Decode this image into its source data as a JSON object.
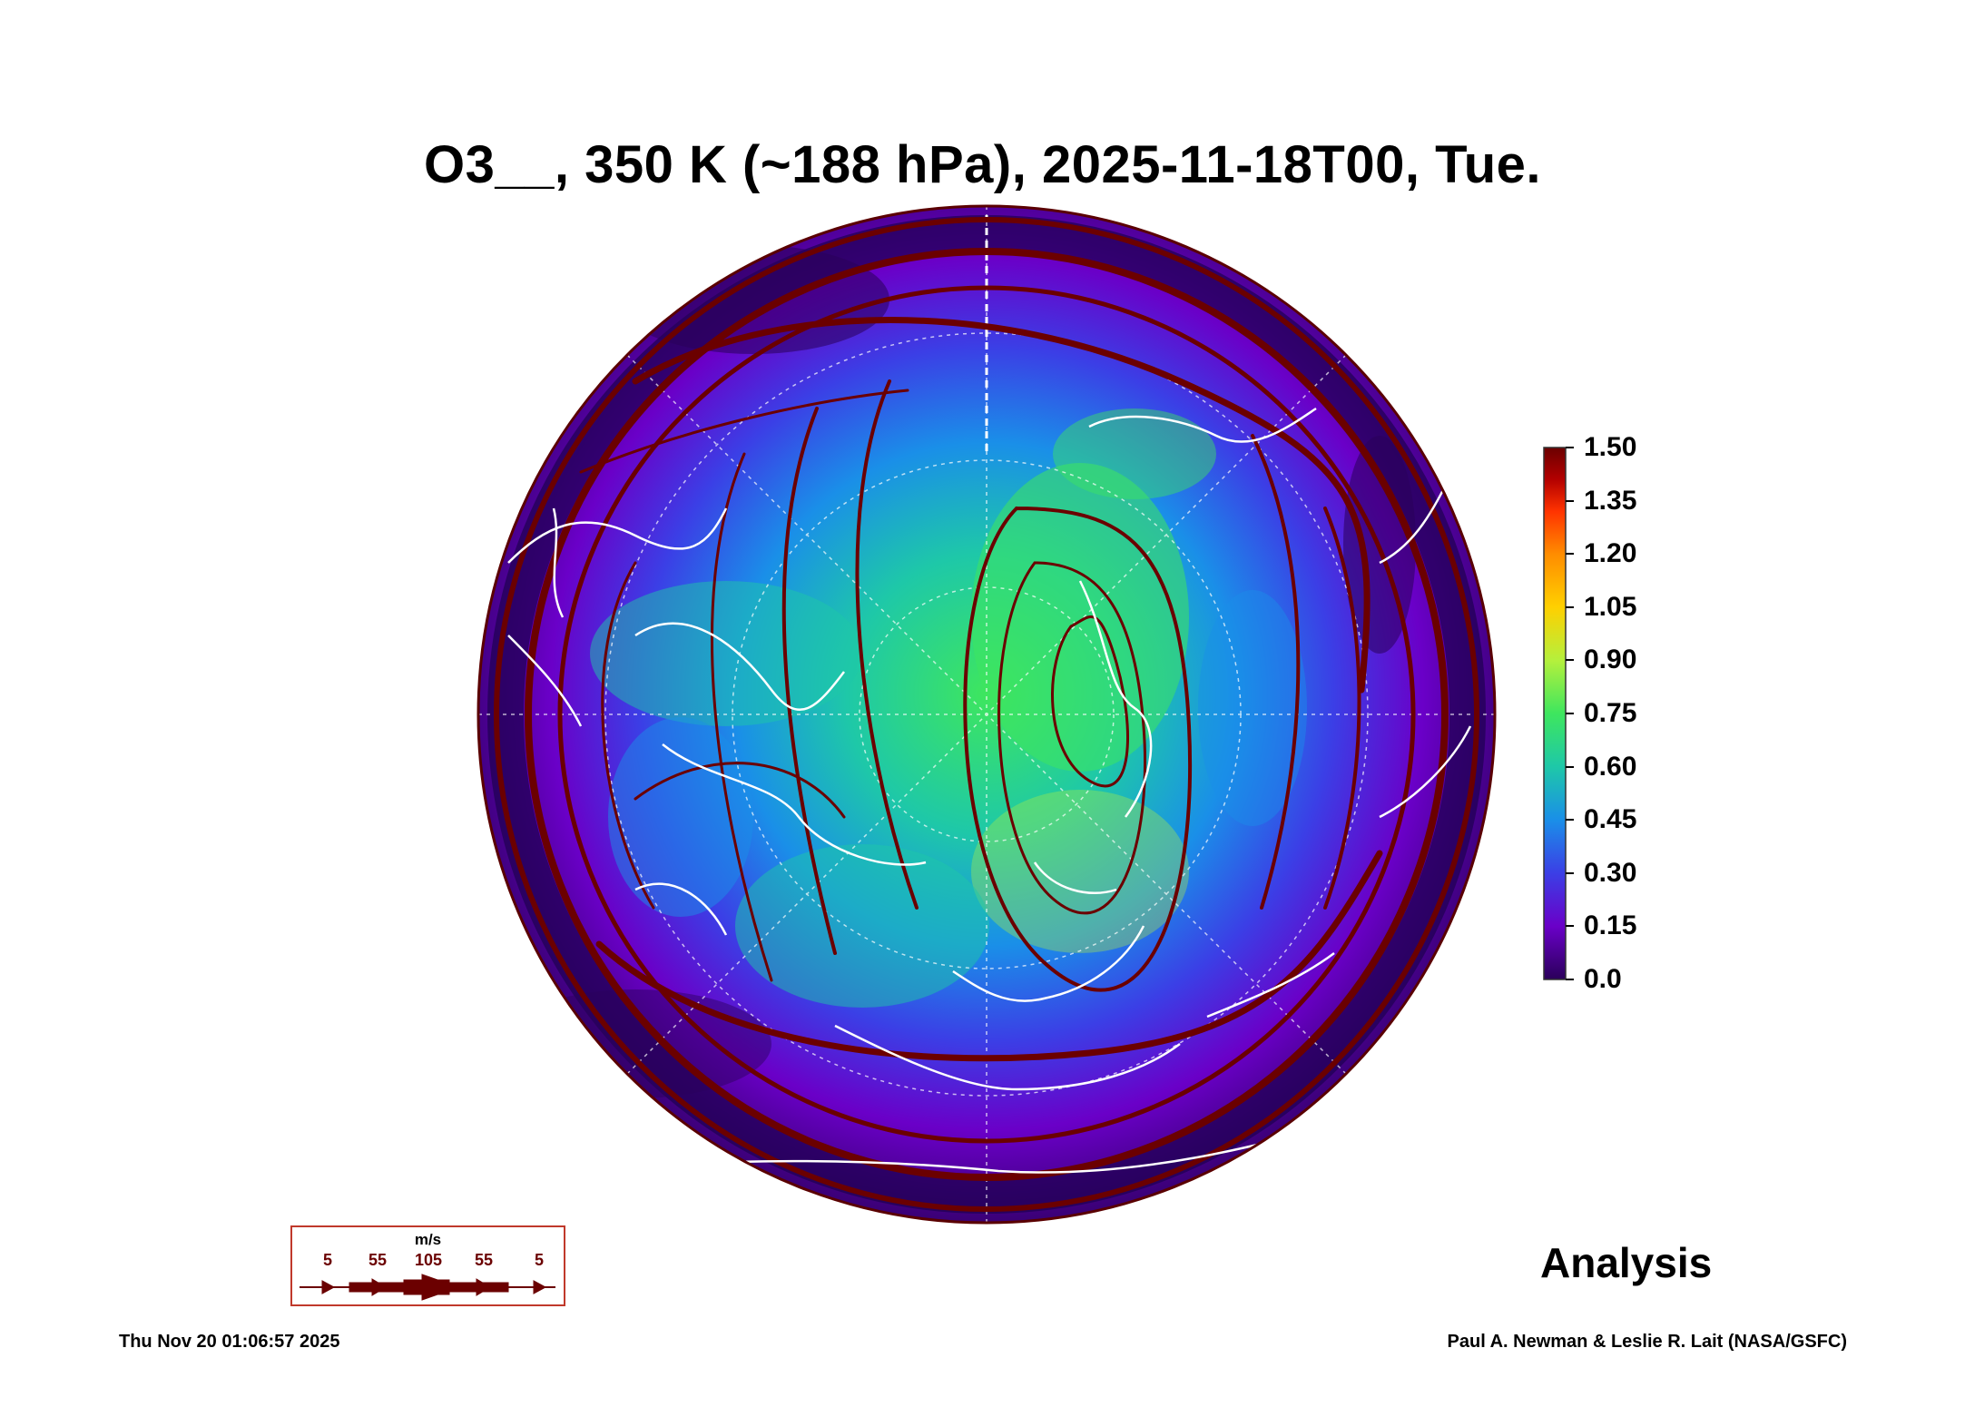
{
  "title": "O3__, 350 K (~188 hPa), 2025-11-18T00, Tue.",
  "colorbar": {
    "labels": [
      "1.50",
      "1.35",
      "1.20",
      "1.05",
      "0.90",
      "0.75",
      "0.60",
      "0.45",
      "0.30",
      "0.15",
      "0.0"
    ],
    "colors": [
      "#6b0000",
      "#b30000",
      "#ff3300",
      "#ff8c00",
      "#ffd000",
      "#b5f03c",
      "#3ee65e",
      "#1ec8a8",
      "#1a8fe8",
      "#3b3fe6",
      "#6a00c8",
      "#2a005a"
    ]
  },
  "wind_legend": {
    "unit": "m/s",
    "values": [
      "5",
      "55",
      "105",
      "55",
      "5"
    ],
    "color": "#6b0000"
  },
  "label": "Analysis",
  "timestamp": "Thu Nov 20 01:06:57 2025",
  "credit": "Paul A. Newman & Leslie R. Lait (NASA/GSFC)",
  "map": {
    "projection": "north-polar-orthographic",
    "coastline_color": "#ffffff",
    "streamline_color": "#6b0000"
  }
}
